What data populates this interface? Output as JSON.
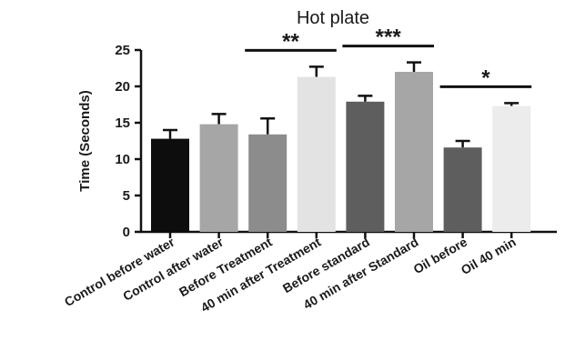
{
  "chart_data": {
    "type": "bar",
    "title": "Hot plate",
    "xlabel": "",
    "ylabel": "Time (Seconds)",
    "ylim": [
      0,
      25
    ],
    "yticks": [
      0,
      5,
      10,
      15,
      20,
      25
    ],
    "grid": false,
    "categories": [
      "Control before water",
      "Control after water",
      "Before Treatment",
      "40 min after Treatment",
      "Before standard",
      "40 min after Standard",
      "Oil before",
      "Oil 40 min"
    ],
    "values": [
      12.8,
      14.8,
      13.4,
      21.3,
      17.9,
      22.0,
      11.6,
      17.3
    ],
    "errors": [
      1.2,
      1.4,
      2.2,
      1.4,
      0.8,
      1.3,
      0.9,
      0.4
    ],
    "bar_colors": [
      "#0d0d0d",
      "#a6a6a6",
      "#8c8c8c",
      "#e3e3e3",
      "#5e5e5e",
      "#a6a6a6",
      "#5e5e5e",
      "#ececec"
    ],
    "significance": [
      {
        "from": 2,
        "to": 3,
        "label": "**"
      },
      {
        "from": 4,
        "to": 5,
        "label": "***"
      },
      {
        "from": 6,
        "to": 7,
        "label": "*"
      }
    ]
  }
}
